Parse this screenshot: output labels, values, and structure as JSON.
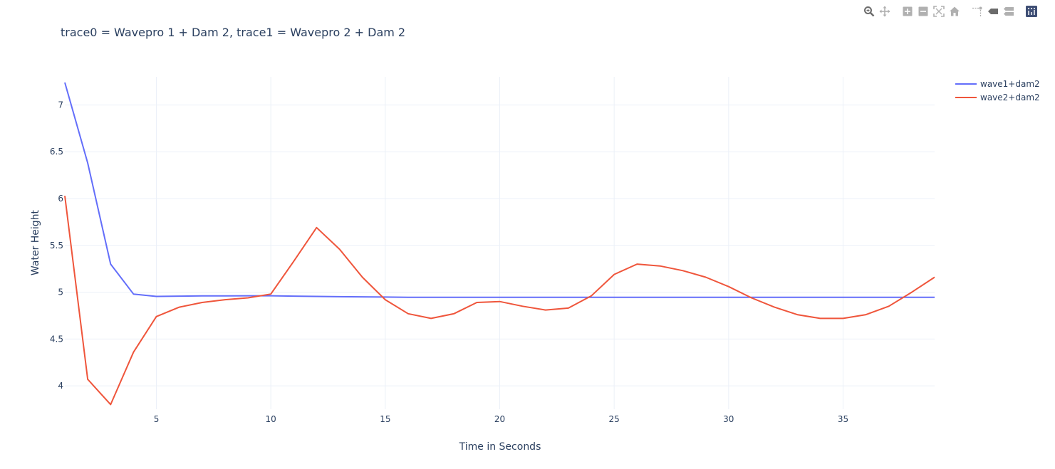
{
  "chart_data": {
    "type": "line",
    "title": "trace0 = Wavepro 1 + Dam 2, trace1 = Wavepro 2 + Dam 2",
    "xlabel": "Time in Seconds",
    "ylabel": "Water Height",
    "xlim": [
      1,
      39
    ],
    "ylim": [
      3.75,
      7.3
    ],
    "x_ticks": [
      5,
      10,
      15,
      20,
      25,
      30,
      35
    ],
    "y_ticks": [
      4,
      4.5,
      5,
      5.5,
      6,
      6.5,
      7
    ],
    "grid": true,
    "legend_position": "top-right",
    "x": [
      1,
      2,
      3,
      4,
      5,
      6,
      7,
      8,
      9,
      10,
      11,
      12,
      13,
      14,
      15,
      16,
      17,
      18,
      19,
      20,
      21,
      22,
      23,
      24,
      25,
      26,
      27,
      28,
      29,
      30,
      31,
      32,
      33,
      34,
      35,
      36,
      37,
      38,
      39
    ],
    "series": [
      {
        "name": "wave1+dam2",
        "color": "#636efa",
        "values": [
          7.24,
          6.38,
          5.3,
          4.98,
          4.955,
          4.958,
          4.96,
          4.96,
          4.962,
          4.962,
          4.958,
          4.955,
          4.952,
          4.95,
          4.948,
          4.946,
          4.946,
          4.946,
          4.946,
          4.946,
          4.946,
          4.946,
          4.946,
          4.945,
          4.945,
          4.945,
          4.945,
          4.945,
          4.945,
          4.945,
          4.945,
          4.945,
          4.945,
          4.945,
          4.945,
          4.945,
          4.945,
          4.945,
          4.945
        ]
      },
      {
        "name": "wave2+dam2",
        "color": "#EF553B",
        "values": [
          6.03,
          4.07,
          3.8,
          4.36,
          4.74,
          4.84,
          4.89,
          4.92,
          4.94,
          4.98,
          5.33,
          5.69,
          5.46,
          5.16,
          4.92,
          4.77,
          4.72,
          4.77,
          4.89,
          4.9,
          4.85,
          4.81,
          4.83,
          4.96,
          5.19,
          5.3,
          5.28,
          5.23,
          5.16,
          5.06,
          4.94,
          4.84,
          4.76,
          4.72,
          4.72,
          4.76,
          4.85,
          5.0,
          5.16
        ]
      }
    ]
  },
  "modebar": {
    "icons": [
      "zoom-icon",
      "pan-icon",
      "zoom-in-icon",
      "zoom-out-icon",
      "autoscale-icon",
      "reset-axes-icon",
      "spike-lines-icon",
      "hover-closest-icon",
      "hover-compare-icon",
      "plotly-logo-icon"
    ]
  }
}
